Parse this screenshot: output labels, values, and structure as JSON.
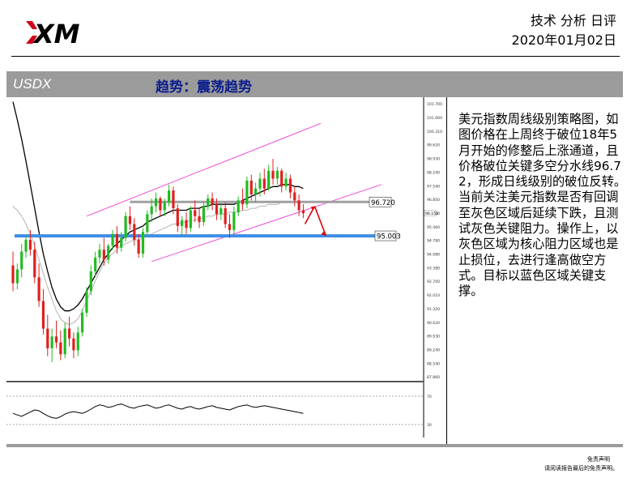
{
  "header": {
    "brand": "XM",
    "doc_type": "技术 分析 日评",
    "date": "2020年01月02日"
  },
  "section": {
    "symbol": "USDX",
    "trend": "趋势：震荡趋势"
  },
  "commentary": "美元指数周线级别策略图，如图价格在上周终于破位18年5月开始的修整后上涨通道，且价格破位关键多空分水线96.72，形成日线级别的破位反转。当前关注美元指数是否有回调至灰色区域后延续下跌，且测试灰色关键阻力。操作上，以灰色区域为核心阻力区域也是止损位，去进行逢高做空方式。目标以蓝色区域关键支撑。",
  "footer": {
    "disclaimer_title": "免责声明",
    "disclaimer_text": "请阅读报告最后的免责声明。"
  },
  "chart_data": {
    "type": "candlestick",
    "price_axis_ticks": [
      "101.700",
      "101.000",
      "100.310",
      "99.620",
      "98.930",
      "98.240",
      "97.540",
      "96.850",
      "96.150",
      "95.460",
      "94.780",
      "94.080",
      "93.380",
      "92.700",
      "92.010",
      "91.320",
      "90.620",
      "89.930",
      "89.240",
      "88.540",
      "87.860"
    ],
    "current_price_label": "96.152",
    "levels": [
      {
        "name": "resistance",
        "value": 96.72,
        "label": "96.720",
        "color": "#a0a0a0"
      },
      {
        "name": "support",
        "value": 95.003,
        "label": "95.003",
        "color": "#3d8ee6"
      }
    ],
    "channel_color": "#ee4ed8",
    "up_color": "#22bb22",
    "down_color": "#e02020",
    "candles": [
      [
        93.5,
        94.2,
        92.2,
        92.6
      ],
      [
        92.6,
        93.6,
        92.3,
        93.3
      ],
      [
        93.3,
        94.6,
        92.9,
        94.2
      ],
      [
        94.2,
        95.0,
        93.9,
        94.8
      ],
      [
        94.8,
        95.3,
        94.0,
        94.3
      ],
      [
        94.3,
        94.7,
        92.6,
        92.9
      ],
      [
        92.9,
        93.6,
        91.4,
        91.7
      ],
      [
        91.7,
        92.3,
        90.0,
        90.3
      ],
      [
        90.3,
        91.0,
        88.9,
        89.3
      ],
      [
        89.3,
        90.3,
        88.6,
        89.9
      ],
      [
        89.9,
        90.7,
        89.3,
        89.6
      ],
      [
        89.6,
        90.2,
        88.7,
        89.0
      ],
      [
        89.0,
        90.6,
        88.8,
        90.3
      ],
      [
        90.3,
        90.9,
        89.4,
        89.8
      ],
      [
        89.8,
        90.1,
        88.8,
        89.2
      ],
      [
        89.2,
        90.4,
        88.9,
        90.1
      ],
      [
        90.1,
        91.3,
        89.9,
        91.1
      ],
      [
        91.1,
        92.4,
        90.9,
        92.2
      ],
      [
        92.2,
        93.5,
        92.0,
        93.2
      ],
      [
        93.2,
        94.2,
        92.9,
        93.9
      ],
      [
        93.9,
        94.6,
        93.6,
        94.3
      ],
      [
        94.3,
        94.9,
        93.5,
        93.8
      ],
      [
        93.8,
        94.6,
        93.6,
        94.5
      ],
      [
        94.5,
        95.3,
        94.3,
        95.1
      ],
      [
        95.1,
        95.5,
        94.1,
        94.4
      ],
      [
        94.4,
        95.2,
        94.2,
        94.9
      ],
      [
        94.9,
        96.2,
        94.7,
        96.0
      ],
      [
        96.0,
        96.5,
        95.3,
        95.6
      ],
      [
        95.6,
        95.9,
        94.5,
        94.8
      ],
      [
        94.8,
        95.1,
        93.9,
        94.1
      ],
      [
        94.1,
        95.4,
        93.9,
        95.2
      ],
      [
        95.2,
        96.3,
        95.0,
        96.1
      ],
      [
        96.1,
        96.9,
        95.7,
        96.5
      ],
      [
        96.5,
        97.2,
        96.2,
        96.9
      ],
      [
        96.9,
        97.0,
        96.0,
        96.3
      ],
      [
        96.3,
        96.9,
        96.0,
        96.7
      ],
      [
        96.7,
        97.6,
        96.5,
        97.3
      ],
      [
        97.3,
        97.5,
        96.1,
        96.4
      ],
      [
        96.4,
        96.6,
        95.2,
        95.5
      ],
      [
        95.5,
        96.0,
        95.0,
        95.8
      ],
      [
        95.8,
        96.2,
        95.1,
        95.4
      ],
      [
        95.4,
        96.5,
        95.2,
        96.3
      ],
      [
        96.3,
        96.8,
        95.7,
        96.0
      ],
      [
        96.0,
        96.4,
        95.4,
        95.7
      ],
      [
        95.7,
        96.7,
        95.5,
        96.5
      ],
      [
        96.5,
        97.1,
        96.3,
        96.9
      ],
      [
        96.9,
        97.2,
        96.3,
        96.6
      ],
      [
        96.6,
        96.9,
        95.8,
        96.1
      ],
      [
        96.1,
        96.6,
        95.8,
        96.4
      ],
      [
        96.4,
        96.7,
        95.4,
        95.6
      ],
      [
        95.6,
        96.1,
        94.9,
        95.3
      ],
      [
        95.3,
        96.5,
        95.1,
        96.2
      ],
      [
        96.2,
        97.0,
        96.0,
        96.8
      ],
      [
        96.8,
        97.4,
        96.3,
        96.6
      ],
      [
        96.6,
        98.0,
        96.4,
        97.8
      ],
      [
        97.8,
        98.1,
        96.8,
        97.1
      ],
      [
        97.1,
        97.7,
        96.7,
        97.4
      ],
      [
        97.4,
        98.2,
        97.0,
        97.9
      ],
      [
        97.9,
        98.4,
        97.1,
        97.4
      ],
      [
        97.4,
        98.6,
        97.3,
        98.3
      ],
      [
        98.3,
        98.9,
        97.6,
        97.9
      ],
      [
        97.9,
        98.5,
        97.6,
        98.3
      ],
      [
        98.3,
        98.4,
        97.2,
        97.5
      ],
      [
        97.5,
        98.2,
        97.3,
        97.9
      ],
      [
        97.9,
        98.1,
        96.9,
        97.2
      ],
      [
        97.2,
        97.5,
        96.5,
        96.8
      ],
      [
        96.8,
        97.1,
        96.0,
        96.3
      ],
      [
        96.3,
        96.6,
        95.9,
        96.15
      ]
    ],
    "series": [
      {
        "name": "ma-fast",
        "color": "#000000",
        "values": [
          101.8,
          100.9,
          99.9,
          98.8,
          97.6,
          96.4,
          95.2,
          94.1,
          93.2,
          92.4,
          91.8,
          91.4,
          91.2,
          91.2,
          91.3,
          91.5,
          91.8,
          92.2,
          92.6,
          93.0,
          93.4,
          93.8,
          94.1,
          94.4,
          94.6,
          94.8,
          95.0,
          95.2,
          95.3,
          95.4,
          95.5,
          95.7,
          95.8,
          95.9,
          96.0,
          96.1,
          96.2,
          96.3,
          96.3,
          96.3,
          96.3,
          96.4,
          96.4,
          96.4,
          96.5,
          96.5,
          96.6,
          96.6,
          96.6,
          96.6,
          96.6,
          96.6,
          96.7,
          96.8,
          96.9,
          97.0,
          97.1,
          97.2,
          97.3,
          97.4,
          97.5,
          97.5,
          97.6,
          97.6,
          97.6,
          97.5,
          97.5,
          97.4
        ]
      },
      {
        "name": "ma-slow",
        "color": "#b4b4b4",
        "values": [
          96.5,
          96.3,
          96.0,
          95.6,
          95.1,
          94.5,
          93.8,
          93.1,
          92.4,
          91.8,
          91.2,
          90.8,
          90.6,
          90.5,
          90.6,
          90.8,
          91.2,
          91.7,
          92.2,
          92.7,
          93.2,
          93.6,
          93.9,
          94.1,
          94.3,
          94.5,
          94.6,
          94.7,
          94.8,
          94.8,
          94.9,
          95.0,
          95.1,
          95.2,
          95.3,
          95.4,
          95.5,
          95.6,
          95.6,
          95.7,
          95.7,
          95.8,
          95.8,
          95.9,
          95.9,
          96.0,
          96.0,
          96.1,
          96.1,
          96.1,
          96.2,
          96.2,
          96.2,
          96.3,
          96.3,
          96.4,
          96.4,
          96.5,
          96.5,
          96.6,
          96.6,
          96.6,
          96.7,
          96.7,
          96.7,
          96.7,
          96.7,
          96.7
        ]
      }
    ],
    "oscillator": {
      "ticks": [
        "70",
        "30"
      ],
      "values": [
        42,
        38,
        35,
        40,
        45,
        50,
        48,
        42,
        36,
        32,
        30,
        34,
        40,
        44,
        46,
        44,
        42,
        46,
        52,
        58,
        62,
        60,
        56,
        58,
        62,
        64,
        60,
        56,
        54,
        58,
        60,
        62,
        58,
        54,
        56,
        60,
        62,
        58,
        54,
        52,
        56,
        58,
        54,
        52,
        55,
        58,
        60,
        56,
        54,
        52,
        50,
        54,
        58,
        60,
        62,
        58,
        56,
        58,
        60,
        58,
        56,
        54,
        52,
        50,
        48,
        46,
        44,
        42
      ]
    }
  }
}
